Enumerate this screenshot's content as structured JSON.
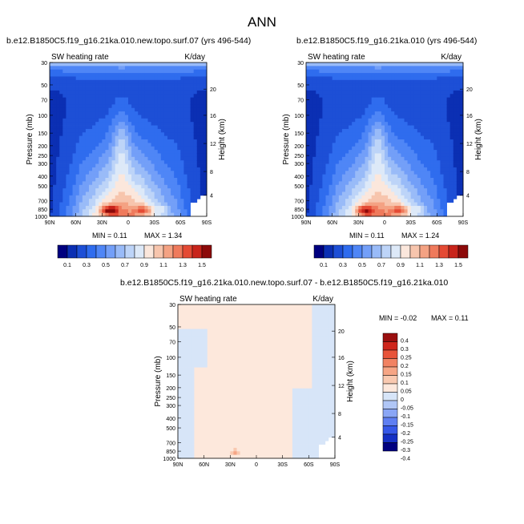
{
  "main_title": "ANN",
  "colors": {
    "palette": [
      "#00007f",
      "#0b2fb3",
      "#1d4fd6",
      "#2f6cee",
      "#4f86f6",
      "#739ff8",
      "#99bbf8",
      "#bdd4f8",
      "#dde9f8",
      "#fbe7dc",
      "#f7c5ad",
      "#f4a283",
      "#ef7a5c",
      "#e44a34",
      "#c8241b",
      "#8c0a0a"
    ],
    "diff_palette": [
      "#00007f",
      "#1530c4",
      "#3658e8",
      "#5f7ff2",
      "#8aa6f6",
      "#b0c6f6",
      "#d7e5f8",
      "#fde8dc",
      "#f9c9b0",
      "#f6a585",
      "#f18262",
      "#e8543a",
      "#cf261c",
      "#9a0f0f"
    ]
  },
  "chart_data": [
    {
      "type": "heatmap",
      "case_title": "b.e12.B1850C5.f19_g16.21ka.010.new.topo.surf.07 (yrs 496-544)",
      "left_label": "SW heating rate",
      "right_label": "K/day",
      "ylabel": "Pressure (mb)",
      "ylabel_right": "Height (km)",
      "x_ticks": [
        "90N",
        "60N",
        "30N",
        "0",
        "30S",
        "60S",
        "90S"
      ],
      "y_ticks": [
        "30",
        "50",
        "70",
        "100",
        "150",
        "200",
        "250",
        "300",
        "400",
        "500",
        "700",
        "850",
        "1000"
      ],
      "height_ticks": [
        "20",
        "16",
        "12",
        "8",
        "4"
      ],
      "min_label": "MIN =   0.11",
      "max_label": "MAX =   1.34",
      "colorbar_labels": [
        "0.1",
        "0.3",
        "0.5",
        "0.7",
        "0.9",
        "1.1",
        "1.3",
        "1.5"
      ]
    },
    {
      "type": "heatmap",
      "case_title": "b.e12.B1850C5.f19_g16.21ka.010 (yrs 496-544)",
      "left_label": "SW heating rate",
      "right_label": "K/day",
      "ylabel": "Pressure (mb)",
      "ylabel_right": "Height (km)",
      "x_ticks": [
        "90N",
        "60N",
        "30N",
        "0",
        "30S",
        "60S",
        "90S"
      ],
      "y_ticks": [
        "30",
        "50",
        "70",
        "100",
        "150",
        "200",
        "250",
        "300",
        "400",
        "500",
        "700",
        "850",
        "1000"
      ],
      "height_ticks": [
        "20",
        "16",
        "12",
        "8",
        "4"
      ],
      "min_label": "MIN =   0.11",
      "max_label": "MAX =   1.24",
      "colorbar_labels": [
        "0.1",
        "0.3",
        "0.5",
        "0.7",
        "0.9",
        "1.1",
        "1.3",
        "1.5"
      ]
    },
    {
      "type": "heatmap",
      "case_title": "b.e12.B1850C5.f19_g16.21ka.010.new.topo.surf.07 - b.e12.B1850C5.f19_g16.21ka.010",
      "left_label": "SW heating rate",
      "right_label": "K/day",
      "ylabel": "Pressure (mb)",
      "ylabel_right": "Height (km)",
      "x_ticks": [
        "90N",
        "60N",
        "30N",
        "0",
        "30S",
        "60S",
        "90S"
      ],
      "y_ticks": [
        "30",
        "50",
        "70",
        "100",
        "150",
        "200",
        "250",
        "300",
        "400",
        "500",
        "700",
        "850",
        "1000"
      ],
      "height_ticks": [
        "20",
        "16",
        "12",
        "8",
        "4"
      ],
      "min_label": "MIN =  -0.02",
      "max_label": "MAX =   0.11",
      "colorbar_labels": [
        "0.4",
        "0.3",
        "0.25",
        "0.2",
        "0.15",
        "0.1",
        "0.05",
        "0",
        "-0.05",
        "-0.1",
        "-0.15",
        "-0.2",
        "-0.25",
        "-0.3",
        "-0.4"
      ]
    }
  ]
}
